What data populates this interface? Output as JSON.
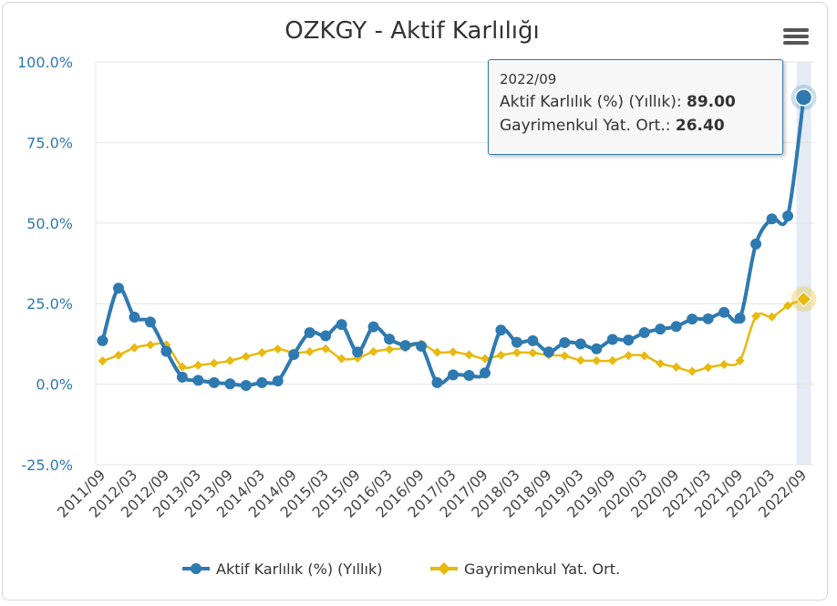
{
  "chart_data": {
    "type": "line",
    "title": "OZKGY - Aktif Karlılığı",
    "categories": [
      "2011/09",
      "2011/12",
      "2012/03",
      "2012/06",
      "2012/09",
      "2012/12",
      "2013/03",
      "2013/06",
      "2013/09",
      "2013/12",
      "2014/03",
      "2014/06",
      "2014/09",
      "2014/12",
      "2015/03",
      "2015/06",
      "2015/09",
      "2015/12",
      "2016/03",
      "2016/06",
      "2016/09",
      "2016/12",
      "2017/03",
      "2017/06",
      "2017/09",
      "2017/12",
      "2018/03",
      "2018/06",
      "2018/09",
      "2018/12",
      "2019/03",
      "2019/06",
      "2019/09",
      "2019/12",
      "2020/03",
      "2020/06",
      "2020/09",
      "2020/12",
      "2021/03",
      "2021/06",
      "2021/09",
      "2021/12",
      "2022/03",
      "2022/06",
      "2022/09"
    ],
    "x_tick_labels": [
      "2011/09",
      "2012/03",
      "2012/09",
      "2013/03",
      "2013/09",
      "2014/03",
      "2014/09",
      "2015/03",
      "2015/09",
      "2016/03",
      "2016/09",
      "2017/03",
      "2017/09",
      "2018/03",
      "2018/09",
      "2019/03",
      "2019/09",
      "2020/03",
      "2020/09",
      "2021/03",
      "2021/09",
      "2022/03",
      "2022/09"
    ],
    "y_ticks": [
      "100.0%",
      "75.0%",
      "50.0%",
      "25.0%",
      "0.0%",
      "-25.0%"
    ],
    "ylim": [
      -25,
      100
    ],
    "grid": true,
    "legend_position": "bottom",
    "series": [
      {
        "name": "Aktif Karlılık (%) (Yıllık)",
        "color": "#2e7ab0",
        "marker": "circle",
        "values": [
          13.5,
          29.8,
          20.8,
          19.3,
          10.2,
          2.2,
          1.2,
          0.5,
          0.1,
          -0.4,
          0.5,
          1.0,
          9.2,
          16.0,
          15.0,
          18.5,
          10.0,
          17.8,
          14.0,
          12.0,
          11.8,
          0.5,
          2.9,
          2.7,
          3.5,
          16.8,
          13.0,
          13.5,
          10.0,
          12.9,
          12.5,
          11.0,
          13.9,
          13.7,
          16.0,
          17.1,
          17.9,
          20.2,
          20.3,
          22.3,
          20.5,
          43.5,
          51.3,
          52.2,
          89.0
        ]
      },
      {
        "name": "Gayrimenkul Yat. Ort.",
        "color": "#e8b90e",
        "marker": "diamond",
        "values": [
          7.2,
          9.0,
          11.3,
          12.2,
          12.2,
          5.4,
          5.9,
          6.5,
          7.3,
          8.6,
          9.8,
          10.9,
          9.8,
          10.1,
          11.0,
          7.9,
          8.1,
          10.1,
          10.8,
          11.2,
          12.5,
          9.9,
          10.0,
          9.1,
          7.9,
          9.0,
          9.8,
          9.7,
          9.0,
          8.8,
          7.4,
          7.3,
          7.3,
          8.9,
          8.8,
          6.4,
          5.3,
          4.0,
          5.2,
          6.1,
          7.3,
          21.1,
          20.9,
          24.4,
          26.4
        ]
      }
    ],
    "tooltip": {
      "date": "2022/09",
      "row1_label": "Aktif Karlılık (%) (Yıllık): ",
      "row1_value": "89.00",
      "row2_label": "Gayrimenkul Yat. Ort.: ",
      "row2_value": "26.40"
    }
  }
}
